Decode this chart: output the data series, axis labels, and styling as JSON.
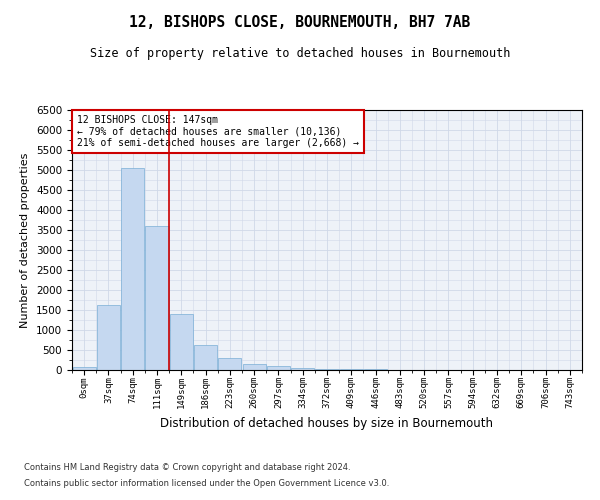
{
  "title": "12, BISHOPS CLOSE, BOURNEMOUTH, BH7 7AB",
  "subtitle": "Size of property relative to detached houses in Bournemouth",
  "xlabel": "Distribution of detached houses by size in Bournemouth",
  "ylabel": "Number of detached properties",
  "categories": [
    "0sqm",
    "37sqm",
    "74sqm",
    "111sqm",
    "149sqm",
    "186sqm",
    "223sqm",
    "260sqm",
    "297sqm",
    "334sqm",
    "372sqm",
    "409sqm",
    "446sqm",
    "483sqm",
    "520sqm",
    "557sqm",
    "594sqm",
    "632sqm",
    "669sqm",
    "706sqm",
    "743sqm"
  ],
  "values": [
    70,
    1620,
    5060,
    3600,
    1400,
    620,
    310,
    140,
    90,
    55,
    35,
    25,
    15,
    10,
    8,
    5,
    4,
    3,
    2,
    2,
    2
  ],
  "bar_color": "#c5d8f0",
  "bar_edge_color": "#7aaed6",
  "vline_color": "#cc0000",
  "vline_x_index": 3.5,
  "annotation_text": "12 BISHOPS CLOSE: 147sqm\n← 79% of detached houses are smaller (10,136)\n21% of semi-detached houses are larger (2,668) →",
  "annotation_box_color": "#ffffff",
  "annotation_box_edge": "#cc0000",
  "ylim": [
    0,
    6500
  ],
  "yticks": [
    0,
    500,
    1000,
    1500,
    2000,
    2500,
    3000,
    3500,
    4000,
    4500,
    5000,
    5500,
    6000,
    6500
  ],
  "grid_color": "#d0d8e8",
  "footer_line1": "Contains HM Land Registry data © Crown copyright and database right 2024.",
  "footer_line2": "Contains public sector information licensed under the Open Government Licence v3.0.",
  "bg_color": "#eef2f8",
  "fig_bg_color": "#ffffff"
}
